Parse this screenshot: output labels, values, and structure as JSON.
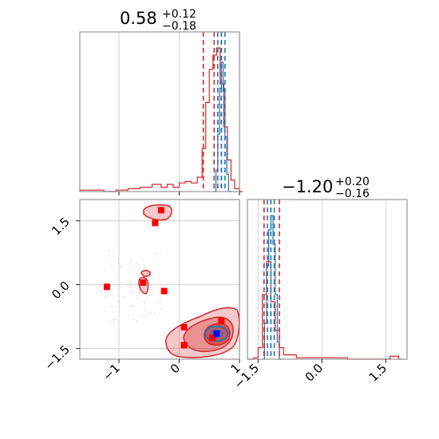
{
  "colors": {
    "red": "#d62728",
    "blue": "#1f77b4",
    "marker_red": "#ff0000",
    "marker_blue": "#0000ff"
  },
  "chart_data": [
    {
      "type": "histogram",
      "panel": "marginal-param-1",
      "title": {
        "main": "0.58",
        "sup": "+0.12",
        "sub": "−0.18"
      },
      "xlim": [
        -1.65,
        1.0
      ],
      "grid": true,
      "series": [
        {
          "color": "red",
          "bins": [
            [
              -1.65,
              0.01
            ],
            [
              -1.45,
              0.01
            ],
            [
              -1.25,
              0.0
            ],
            [
              -1.05,
              0.01
            ],
            [
              -0.85,
              0.02
            ],
            [
              -0.65,
              0.03
            ],
            [
              -0.45,
              0.05
            ],
            [
              -0.3,
              0.03
            ],
            [
              -0.2,
              0.05
            ],
            [
              -0.1,
              0.03
            ],
            [
              0.0,
              0.06
            ],
            [
              0.1,
              0.07
            ],
            [
              0.2,
              0.06
            ],
            [
              0.3,
              0.1
            ],
            [
              0.38,
              0.3
            ],
            [
              0.44,
              0.62
            ],
            [
              0.5,
              0.85
            ],
            [
              0.56,
              0.95
            ],
            [
              0.62,
              1.0
            ],
            [
              0.68,
              0.75
            ],
            [
              0.74,
              0.45
            ],
            [
              0.8,
              0.22
            ],
            [
              0.86,
              0.08
            ],
            [
              0.92,
              0.02
            ],
            [
              1.0,
              0.0
            ]
          ],
          "quantiles": [
            0.4,
            0.58,
            0.7
          ]
        },
        {
          "color": "blue",
          "bins": [
            [
              0.58,
              0.0
            ],
            [
              0.61,
              0.15
            ],
            [
              0.64,
              0.4
            ],
            [
              0.67,
              0.72
            ],
            [
              0.7,
              0.9
            ],
            [
              0.73,
              0.7
            ],
            [
              0.76,
              0.38
            ],
            [
              0.79,
              0.12
            ],
            [
              0.82,
              0.0
            ]
          ],
          "quantiles": [
            0.64,
            0.7,
            0.76
          ]
        }
      ]
    },
    {
      "type": "histogram",
      "panel": "marginal-param-2",
      "title": {
        "main": "−1.20",
        "sup": "+0.20",
        "sub": "−0.16"
      },
      "xlim": [
        -1.75,
        2.0
      ],
      "xticks": [
        -1.5,
        0.0,
        1.5
      ],
      "xticklabels": [
        "−1.5",
        "0.0",
        "1.5"
      ],
      "grid": true,
      "series": [
        {
          "color": "red",
          "bins": [
            [
              -1.75,
              0.0
            ],
            [
              -1.6,
              0.01
            ],
            [
              -1.5,
              0.08
            ],
            [
              -1.4,
              0.45
            ],
            [
              -1.3,
              0.68
            ],
            [
              -1.2,
              0.4
            ],
            [
              -1.1,
              0.2
            ],
            [
              -1.0,
              0.08
            ],
            [
              -0.9,
              0.03
            ],
            [
              -0.6,
              0.01
            ],
            [
              -0.2,
              0.01
            ],
            [
              0.2,
              0.01
            ],
            [
              0.6,
              0.0
            ],
            [
              1.0,
              0.0
            ],
            [
              1.6,
              0.02
            ],
            [
              1.8,
              0.0
            ]
          ],
          "quantiles": [
            -1.36,
            -1.2,
            -1.0
          ]
        },
        {
          "color": "blue",
          "bins": [
            [
              -1.4,
              0.0
            ],
            [
              -1.35,
              0.25
            ],
            [
              -1.3,
              0.65
            ],
            [
              -1.25,
              0.9
            ],
            [
              -1.2,
              1.0
            ],
            [
              -1.15,
              0.8
            ],
            [
              -1.1,
              0.45
            ],
            [
              -1.05,
              0.12
            ],
            [
              -1.0,
              0.0
            ]
          ],
          "quantiles": [
            -1.28,
            -1.2,
            -1.12
          ]
        }
      ]
    },
    {
      "type": "contour-scatter",
      "panel": "joint-param-1-param-2",
      "xlim": [
        -1.65,
        1.0
      ],
      "ylim": [
        -1.75,
        2.0
      ],
      "xticks": [
        -1,
        0,
        1
      ],
      "xticklabels": [
        "−1",
        "0",
        "1"
      ],
      "yticks": [
        -1.5,
        0.0,
        1.5
      ],
      "yticklabels": [
        "−1.5",
        "0.0",
        "1.5"
      ],
      "grid": true,
      "markers_red": [
        [
          -0.3,
          1.75
        ],
        [
          -0.4,
          1.45
        ],
        [
          -1.2,
          -0.05
        ],
        [
          -0.6,
          0.05
        ],
        [
          -0.25,
          -0.15
        ],
        [
          0.08,
          -1.0
        ],
        [
          0.08,
          -1.42
        ],
        [
          0.7,
          -0.85
        ],
        [
          0.55,
          -1.25
        ]
      ],
      "marker_blue": [
        0.62,
        -1.15
      ]
    }
  ]
}
